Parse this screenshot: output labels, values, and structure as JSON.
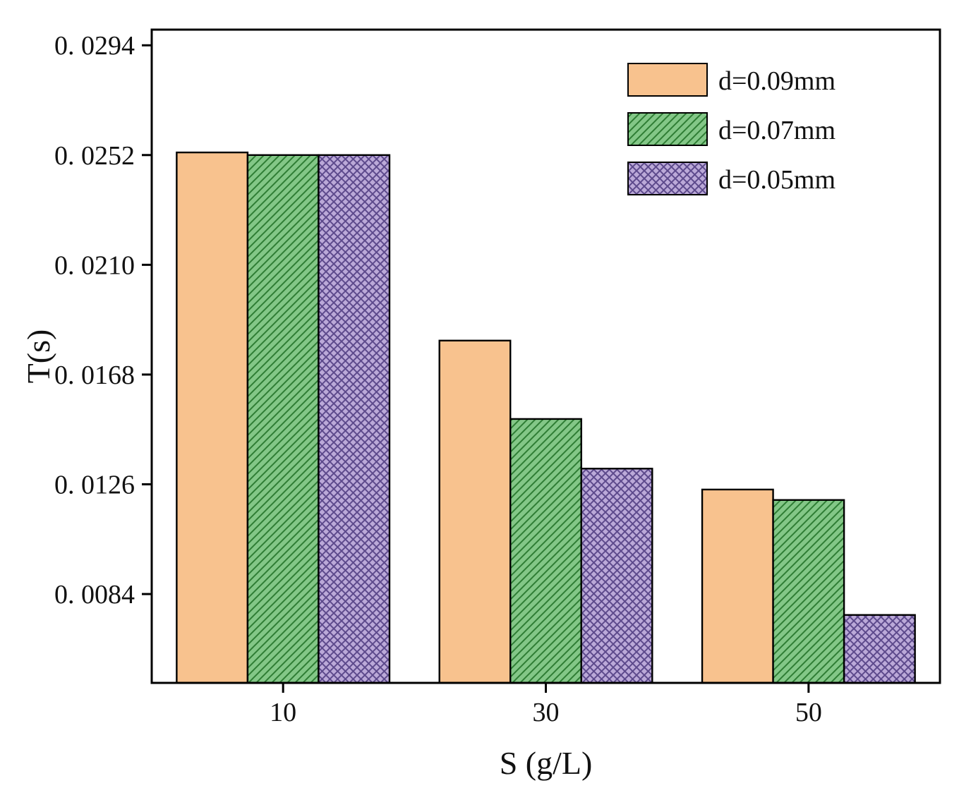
{
  "chart_data": {
    "type": "bar",
    "title": "",
    "xlabel": "S (g/L)",
    "ylabel": "T(s)",
    "categories": [
      "10",
      "30",
      "50"
    ],
    "series": [
      {
        "name": "d=0.09mm",
        "values": [
          0.0253,
          0.0181,
          0.0124
        ],
        "color": "#F8C28E",
        "hatch_color": "#c98b4e",
        "pattern": "none"
      },
      {
        "name": "d=0.07mm",
        "values": [
          0.0252,
          0.0151,
          0.012
        ],
        "color": "#83C787",
        "hatch_color": "#2e7d34",
        "pattern": "diagonal"
      },
      {
        "name": "d=0.05mm",
        "values": [
          0.0252,
          0.0132,
          0.0076
        ],
        "color": "#BBA9D8",
        "hatch_color": "#5d4a8c",
        "pattern": "crosshatch"
      }
    ],
    "ylim": [
      0.005,
      0.03
    ],
    "ytick_values": [
      0.0294,
      0.0252,
      0.021,
      0.0168,
      0.0126,
      0.0084
    ],
    "yticks": [
      "0. 0294",
      "0. 0252",
      "0. 0210",
      "0. 0168",
      "0. 0126",
      "0. 0084"
    ],
    "legend_position": "upper right",
    "grid": false,
    "bar_edge_color": "#000000",
    "frame_color": "#000000"
  }
}
